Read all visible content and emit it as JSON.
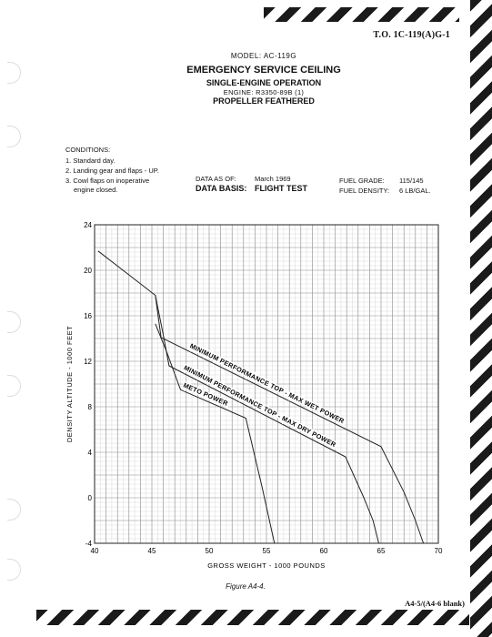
{
  "header": {
    "to_number": "T.O. 1C-119(A)G-1",
    "model": "MODEL: AC-119G",
    "title": "EMERGENCY SERVICE CEILING",
    "subtitle": "SINGLE-ENGINE OPERATION",
    "engine_label": "ENGINE:",
    "engine_value": "R3350-89B (1)",
    "propeller": "PROPELLER FEATHERED"
  },
  "conditions": {
    "heading": "CONDITIONS:",
    "items": [
      "1.  Standard day.",
      "2.  Landing gear and flaps - UP.",
      "3.  Cowl flaps on inoperative",
      "     engine closed."
    ]
  },
  "data_info": {
    "as_of_label": "DATA AS OF:",
    "as_of_value": "March 1969",
    "basis_label": "DATA BASIS:",
    "basis_value": "FLIGHT TEST",
    "fuel_grade_label": "FUEL GRADE:",
    "fuel_grade_value": "115/145",
    "fuel_density_label": "FUEL DENSITY:",
    "fuel_density_value": "6 LB/GAL."
  },
  "chart_data": {
    "type": "line",
    "title": "EMERGENCY SERVICE CEILING",
    "xlabel": "GROSS WEIGHT - 1000 POUNDS",
    "ylabel": "DENSITY ALTITUDE - 1000 FEET",
    "xlim": [
      40,
      70
    ],
    "ylim": [
      -4,
      24
    ],
    "x_ticks": [
      "40",
      "45",
      "50",
      "55",
      "60",
      "65",
      "70"
    ],
    "y_ticks": [
      "-4",
      "0",
      "4",
      "8",
      "12",
      "16",
      "20",
      "24"
    ],
    "grid": true,
    "series": [
      {
        "name": "MINIMUM PERFORMANCE TOP - MAX WET POWER",
        "points": [
          [
            40.3,
            21.7
          ],
          [
            45.3,
            17.8
          ],
          [
            45.8,
            14.1
          ],
          [
            65.0,
            4.5
          ],
          [
            67.0,
            0.5
          ],
          [
            68.0,
            -2.0
          ],
          [
            68.7,
            -4.0
          ]
        ]
      },
      {
        "name": "MINIMUM PERFORMANCE TOP - MAX DRY POWER",
        "points": [
          [
            45.3,
            17.8
          ],
          [
            46.0,
            14.3
          ],
          [
            46.5,
            11.6
          ],
          [
            61.9,
            3.6
          ],
          [
            63.5,
            0.0
          ],
          [
            64.3,
            -2.0
          ],
          [
            64.8,
            -4.0
          ]
        ]
      },
      {
        "name": "METO POWER",
        "points": [
          [
            45.3,
            15.3
          ],
          [
            46.3,
            12.8
          ],
          [
            47.5,
            9.5
          ],
          [
            53.2,
            7.0
          ],
          [
            54.6,
            1.0
          ],
          [
            55.7,
            -4.0
          ]
        ]
      }
    ]
  },
  "figure_caption": "Figure A4-4.",
  "page_number": "A4-5/(A4-6 blank)"
}
